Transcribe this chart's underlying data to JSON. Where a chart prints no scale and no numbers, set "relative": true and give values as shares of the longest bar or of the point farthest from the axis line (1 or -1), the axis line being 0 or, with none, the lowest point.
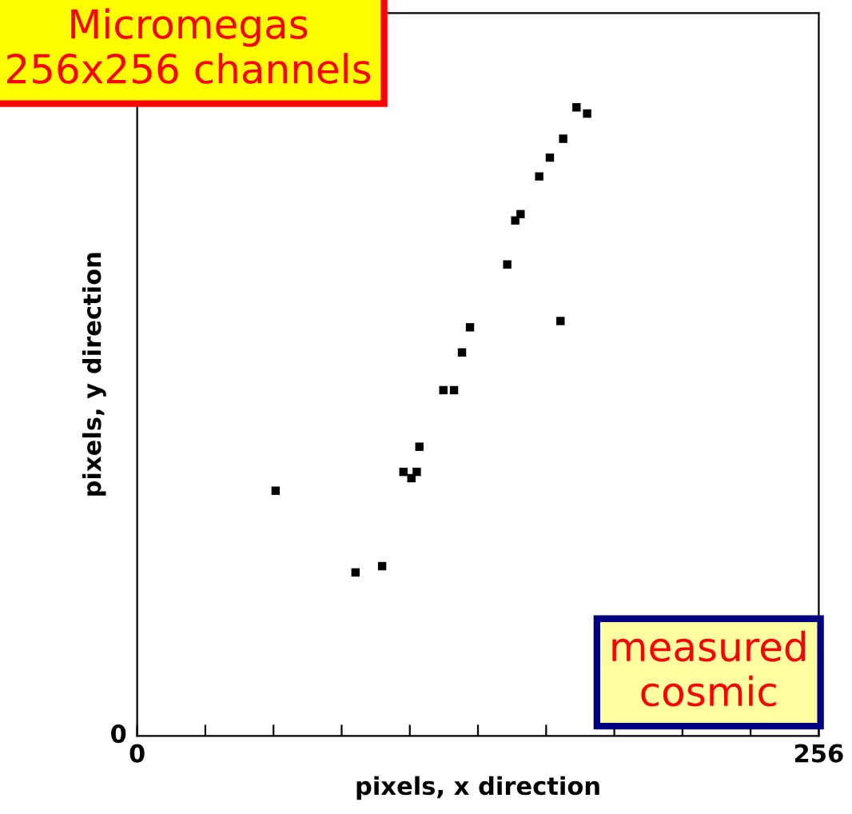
{
  "chart_data": {
    "type": "scatter",
    "xlabel": "pixels, x direction",
    "ylabel": "pixels, y direction",
    "annotations": [
      "Micromegas\n256x256 channels",
      "measured\ncosmic",
      "0"
    ],
    "relative": true,
    "xlim": [
      0,
      256
    ],
    "xticks": [
      0,
      {
        "value": 25.6,
        "label": null
      },
      {
        "value": 51.2,
        "label": null
      },
      {
        "value": 76.8,
        "label": null
      },
      {
        "value": 102.4,
        "label": null
      },
      {
        "value": 128,
        "label": null
      },
      {
        "value": 153.6,
        "label": null
      },
      {
        "value": 179.2,
        "label": null
      },
      {
        "value": 204.8,
        "label": null
      },
      {
        "value": 230.4,
        "label": null
      },
      256
    ],
    "marker": "square",
    "grid": false,
    "legend": false,
    "series": [
      {
        "color": "#000000",
        "x": [
          52,
          82,
          92,
          100,
          103,
          105,
          106,
          115,
          119,
          122,
          125,
          139,
          142,
          144,
          159,
          151,
          155,
          160,
          165,
          169
        ],
        "values": [
          0.39,
          0.26,
          0.27,
          0.42,
          0.41,
          0.42,
          0.46,
          0.55,
          0.55,
          0.61,
          0.65,
          0.75,
          0.82,
          0.83,
          0.66,
          0.89,
          0.92,
          0.95,
          1.0,
          0.99
        ]
      }
    ]
  }
}
